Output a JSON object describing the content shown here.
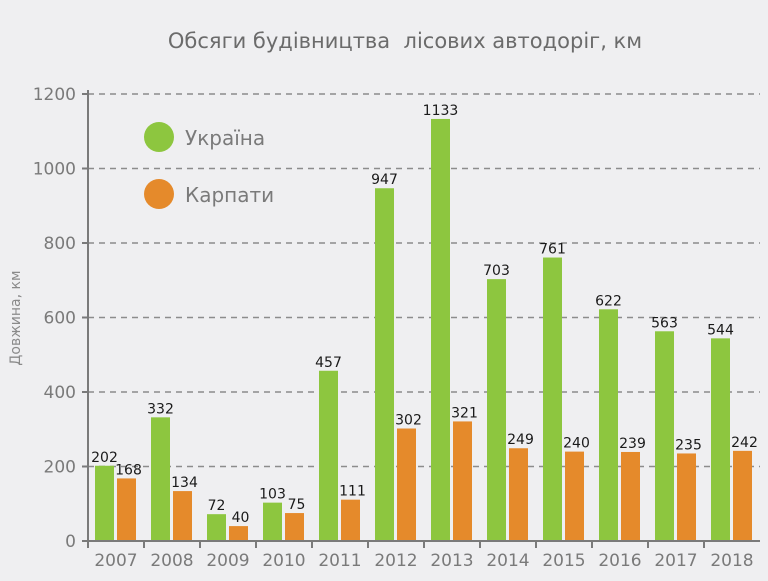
{
  "chart_data": {
    "type": "bar",
    "title": "Обсяги будівництва  лісових автодоріг, км",
    "xlabel": "",
    "ylabel": "Довжина, км",
    "ylim": [
      0,
      1200
    ],
    "yticks": [
      0,
      200,
      400,
      600,
      800,
      1000,
      1200
    ],
    "grid": true,
    "legend_position": "top-left",
    "categories": [
      "2007",
      "2008",
      "2009",
      "2010",
      "2011",
      "2012",
      "2013",
      "2014",
      "2015",
      "2016",
      "2017",
      "2018"
    ],
    "series": [
      {
        "name": "Україна",
        "color": "#8dc63f",
        "values": [
          202,
          332,
          72,
          103,
          457,
          947,
          1133,
          703,
          761,
          622,
          563,
          544
        ]
      },
      {
        "name": "Карпати",
        "color": "#e58a2b",
        "values": [
          168,
          134,
          40,
          75,
          111,
          302,
          321,
          249,
          240,
          239,
          235,
          242
        ]
      }
    ]
  }
}
